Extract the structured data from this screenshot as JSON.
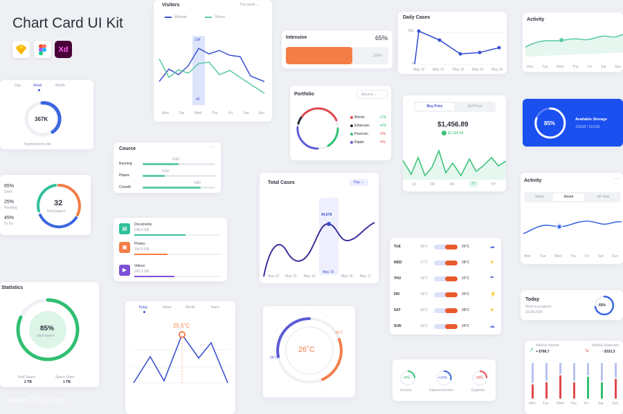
{
  "kit": {
    "title": "Chart Card UI Kit",
    "sketch": "sketch-icon",
    "figma": "figma-icon",
    "xd": "Xd"
  },
  "visitors": {
    "title": "Visitors",
    "period": "This week",
    "legend": [
      "Website",
      "Others"
    ],
    "days": [
      "Mon",
      "Tue",
      "Wed",
      "Thu",
      "Fri",
      "Sat",
      "Sun"
    ],
    "hi": "234",
    "lo": "42"
  },
  "intensive": {
    "title": "Intensive",
    "percent": "65%",
    "right_label": "100%",
    "fill": 0.65,
    "color": "#f47c45"
  },
  "daily_cases": {
    "title": "Daily Cases",
    "yticks": [
      "250",
      "0"
    ],
    "dates": [
      "May 12",
      "May 13",
      "May 14",
      "May 15",
      "May 16"
    ]
  },
  "activity1": {
    "title": "Activity",
    "days": [
      "Mon",
      "Tue",
      "Wed",
      "Thu",
      "Fri",
      "Sat",
      "Sun"
    ]
  },
  "payment": {
    "tabs": [
      "Day",
      "Week",
      "Month"
    ],
    "value": "367K",
    "label": "Payment link visit",
    "fill": 0.6
  },
  "portfolio": {
    "title": "Portfolio",
    "select": "Altcoins",
    "items": [
      {
        "name": "Bitcoin",
        "change": "+2%",
        "dot": "#e0474c",
        "color": "#2fbf71"
      },
      {
        "name": "Ethereum",
        "change": "+6%",
        "dot": "#2b2f3a",
        "color": "#2fbf71"
      },
      {
        "name": "Peercoin",
        "change": "-2%",
        "dot": "#2fbf71",
        "color": "#e0474c"
      },
      {
        "name": "Ripple",
        "change": "-4%",
        "dot": "#5b5bd6",
        "color": "#e0474c"
      }
    ]
  },
  "buy": {
    "tabs": [
      "Buy Price",
      "Sell Price"
    ],
    "price": "$1,456.89",
    "delta": "$1,326.58",
    "ranges": [
      "1D",
      "1W",
      "1M",
      "1Y",
      "5Y"
    ],
    "active_range": "1Y"
  },
  "storage": {
    "title": "Available Storage",
    "percent": "85%",
    "sub": "156GB / 512GB",
    "fill": 0.85
  },
  "project": {
    "stats": [
      {
        "pct": "65%",
        "label": "Done"
      },
      {
        "pct": "25%",
        "label": "Pending"
      },
      {
        "pct": "45%",
        "label": "To Do"
      }
    ],
    "value": "32",
    "label": "Total project"
  },
  "cource": {
    "title": "Cource",
    "rows": [
      {
        "name": "Running",
        "pct": "%50",
        "fill": 0.5
      },
      {
        "name": "Pilates",
        "pct": "%30",
        "fill": 0.3
      },
      {
        "name": "Crossfit",
        "pct": "%80",
        "fill": 0.8
      }
    ]
  },
  "total_cases": {
    "title": "Total Cases",
    "select": "Day",
    "peak": "94,678",
    "dates": [
      "May 12",
      "May 13",
      "May 14",
      "May 15",
      "May 16",
      "May 17"
    ]
  },
  "activity2": {
    "title": "Activity",
    "tabs": [
      "Week",
      "Month",
      "All Time"
    ],
    "days": [
      "Mon",
      "Tue",
      "Wed",
      "Thu",
      "Fri",
      "Sat",
      "Sun"
    ]
  },
  "files": {
    "items": [
      {
        "name": "Documents",
        "size": "248,4 GB",
        "color": "#2fbf9a",
        "fill": 0.6
      },
      {
        "name": "Photos",
        "size": "234,3 GB",
        "color": "#f47c45",
        "fill": 0.45
      },
      {
        "name": "Videos",
        "size": "245,3 GB",
        "color": "#7b4fd6",
        "fill": 0.52
      }
    ]
  },
  "weather": {
    "rows": [
      {
        "day": "TUE",
        "lo": "18°C",
        "hi": "26°C",
        "icon": "cloud-sun-icon"
      },
      {
        "day": "WED",
        "lo": "17°C",
        "hi": "28°C",
        "icon": "sun-icon"
      },
      {
        "day": "THU",
        "lo": "14°C",
        "hi": "22°C",
        "icon": "cloud-rain-icon"
      },
      {
        "day": "FRI",
        "lo": "14°C",
        "hi": "20°C",
        "icon": "storm-icon"
      },
      {
        "day": "SAT",
        "lo": "16°C",
        "hi": "28°C",
        "icon": "sun-icon"
      },
      {
        "day": "SUN",
        "lo": "16°C",
        "hi": "24°C",
        "icon": "cloud-sun-icon"
      }
    ]
  },
  "today": {
    "title": "Today",
    "sub": "Work in progress",
    "date": "20.08.2020",
    "percent": "65%",
    "fill": 0.65
  },
  "statistics": {
    "title": "Statistics",
    "percent": "85%",
    "sub": "used space",
    "fill": 0.85,
    "left_label": "Total Space",
    "left_val": "2 TB",
    "right_label": "Space Used",
    "right_val": "1 TB"
  },
  "temp_chart": {
    "tabs": [
      "Today",
      "Week",
      "Month",
      "Years"
    ],
    "peak": "25.5˚C"
  },
  "thermo": {
    "value": "26˚C",
    "left": "06˚C",
    "right": "36˚C"
  },
  "money": {
    "items": [
      {
        "pct": "+8%",
        "label": "Income",
        "color": "#2fbf71"
      },
      {
        "pct": "+12%",
        "label": "Deposit Income",
        "color": "#3a66e0"
      },
      {
        "pct": "-10%",
        "label": "Expense",
        "color": "#e0474c"
      }
    ]
  },
  "weekly": {
    "income_label": "Weekly Income",
    "income": "+ $789,7",
    "expense_label": "Weekly Expenses",
    "expense": "- $323,3",
    "days": [
      "Mon",
      "Tue",
      "Wed",
      "Thu",
      "Fri",
      "Sat",
      "Sun"
    ]
  },
  "watermark": "www.25xt.com"
}
